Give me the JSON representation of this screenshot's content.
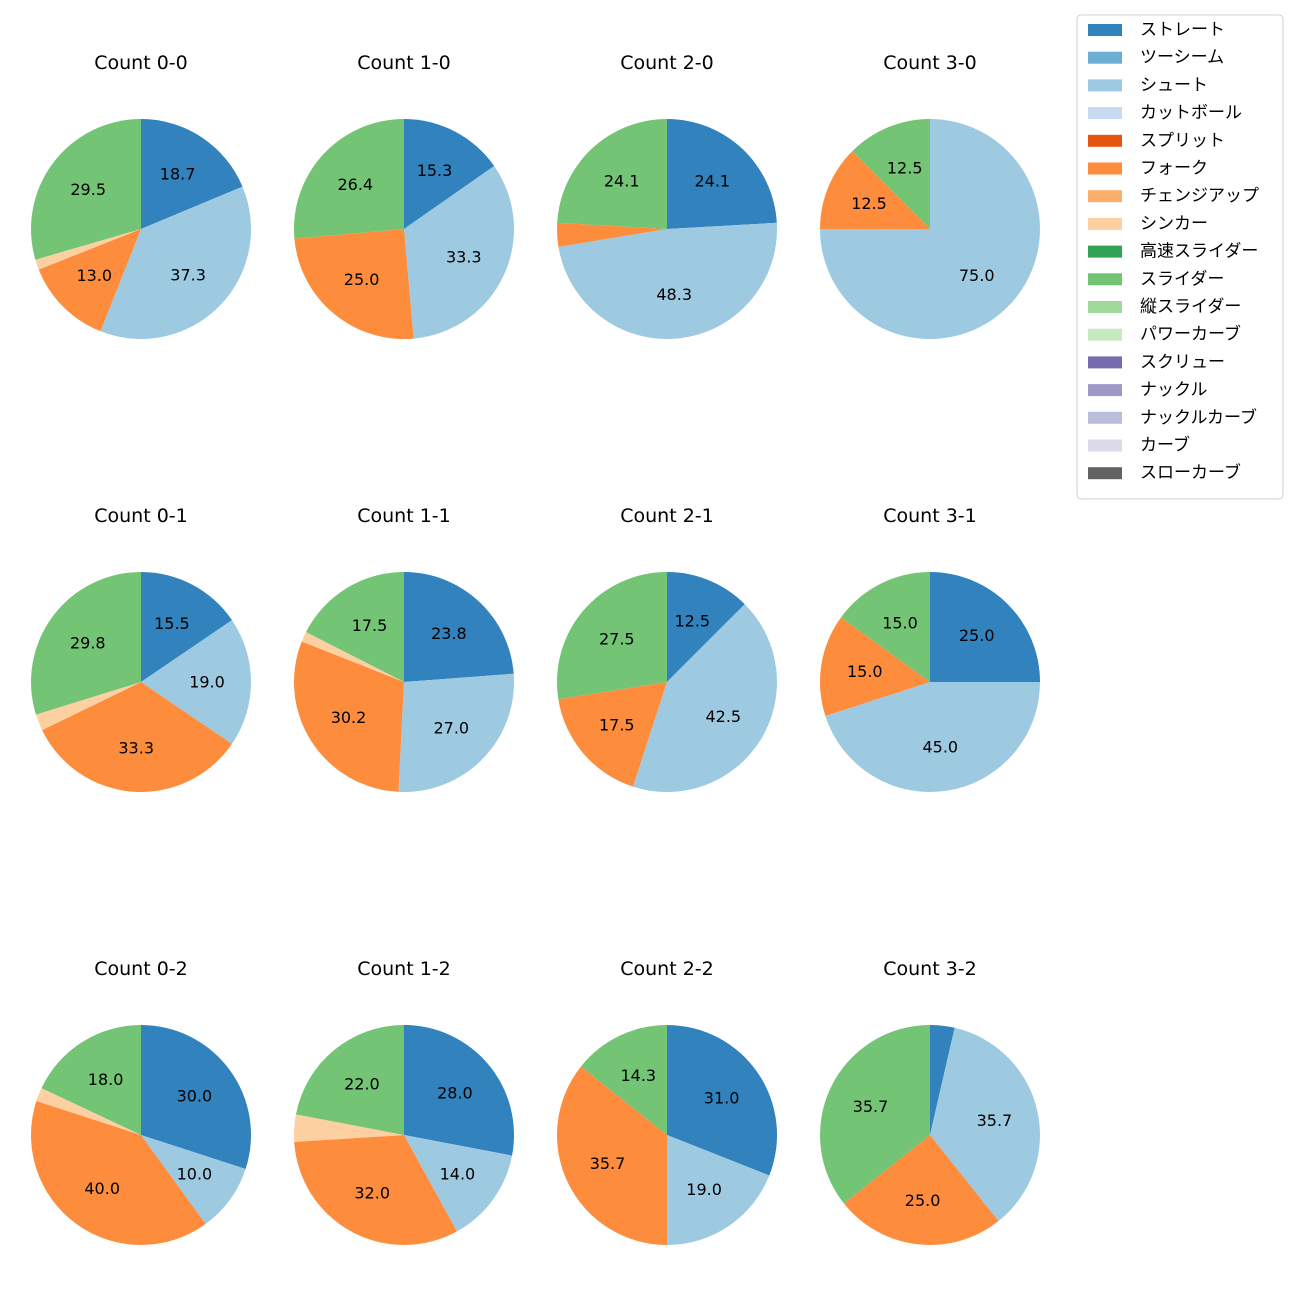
{
  "chart_data": {
    "type": "pie",
    "legend_position": "top-right",
    "pitch_types": [
      {
        "name": "ストレート",
        "color": "#3182bd"
      },
      {
        "name": "ツーシーム",
        "color": "#6baed6"
      },
      {
        "name": "シュート",
        "color": "#9ecae1"
      },
      {
        "name": "カットボール",
        "color": "#c6dbef"
      },
      {
        "name": "スプリット",
        "color": "#e6550d"
      },
      {
        "name": "フォーク",
        "color": "#fd8d3c"
      },
      {
        "name": "チェンジアップ",
        "color": "#fdae6b"
      },
      {
        "name": "シンカー",
        "color": "#fdd0a2"
      },
      {
        "name": "高速スライダー",
        "color": "#31a354"
      },
      {
        "name": "スライダー",
        "color": "#74c476"
      },
      {
        "name": "縦スライダー",
        "color": "#a1d99b"
      },
      {
        "name": "パワーカーブ",
        "color": "#c7e9c0"
      },
      {
        "name": "スクリュー",
        "color": "#756bb1"
      },
      {
        "name": "ナックル",
        "color": "#9e9ac8"
      },
      {
        "name": "ナックルカーブ",
        "color": "#bcbddc"
      },
      {
        "name": "カーブ",
        "color": "#dadaeb"
      },
      {
        "name": "スローカーブ",
        "color": "#636363"
      }
    ],
    "charts": [
      {
        "title": "Count 0-0",
        "slices": [
          {
            "pitch": "ストレート",
            "value": 18.7,
            "label": "18.7"
          },
          {
            "pitch": "シュート",
            "value": 37.3,
            "label": "37.3"
          },
          {
            "pitch": "フォーク",
            "value": 13.0,
            "label": "13.0"
          },
          {
            "pitch": "シンカー",
            "value": 1.5,
            "label": ""
          },
          {
            "pitch": "スライダー",
            "value": 29.5,
            "label": "29.5"
          }
        ]
      },
      {
        "title": "Count 1-0",
        "slices": [
          {
            "pitch": "ストレート",
            "value": 15.3,
            "label": "15.3"
          },
          {
            "pitch": "シュート",
            "value": 33.3,
            "label": "33.3"
          },
          {
            "pitch": "フォーク",
            "value": 25.0,
            "label": "25.0"
          },
          {
            "pitch": "スライダー",
            "value": 26.4,
            "label": "26.4"
          }
        ]
      },
      {
        "title": "Count 2-0",
        "slices": [
          {
            "pitch": "ストレート",
            "value": 24.1,
            "label": "24.1"
          },
          {
            "pitch": "シュート",
            "value": 48.3,
            "label": "48.3"
          },
          {
            "pitch": "フォーク",
            "value": 3.5,
            "label": ""
          },
          {
            "pitch": "スライダー",
            "value": 24.1,
            "label": "24.1"
          }
        ]
      },
      {
        "title": "Count 3-0",
        "slices": [
          {
            "pitch": "シュート",
            "value": 75.0,
            "label": "75.0"
          },
          {
            "pitch": "フォーク",
            "value": 12.5,
            "label": "12.5"
          },
          {
            "pitch": "スライダー",
            "value": 12.5,
            "label": "12.5"
          }
        ]
      },
      {
        "title": "Count 0-1",
        "slices": [
          {
            "pitch": "ストレート",
            "value": 15.5,
            "label": "15.5"
          },
          {
            "pitch": "シュート",
            "value": 19.0,
            "label": "19.0"
          },
          {
            "pitch": "フォーク",
            "value": 33.3,
            "label": "33.3"
          },
          {
            "pitch": "シンカー",
            "value": 2.4,
            "label": ""
          },
          {
            "pitch": "スライダー",
            "value": 29.8,
            "label": "29.8"
          }
        ]
      },
      {
        "title": "Count 1-1",
        "slices": [
          {
            "pitch": "ストレート",
            "value": 23.8,
            "label": "23.8"
          },
          {
            "pitch": "シュート",
            "value": 27.0,
            "label": "27.0"
          },
          {
            "pitch": "フォーク",
            "value": 30.2,
            "label": "30.2"
          },
          {
            "pitch": "シンカー",
            "value": 1.5,
            "label": ""
          },
          {
            "pitch": "スライダー",
            "value": 17.5,
            "label": "17.5"
          }
        ]
      },
      {
        "title": "Count 2-1",
        "slices": [
          {
            "pitch": "ストレート",
            "value": 12.5,
            "label": "12.5"
          },
          {
            "pitch": "シュート",
            "value": 42.5,
            "label": "42.5"
          },
          {
            "pitch": "フォーク",
            "value": 17.5,
            "label": "17.5"
          },
          {
            "pitch": "スライダー",
            "value": 27.5,
            "label": "27.5"
          }
        ]
      },
      {
        "title": "Count 3-1",
        "slices": [
          {
            "pitch": "ストレート",
            "value": 25.0,
            "label": "25.0"
          },
          {
            "pitch": "シュート",
            "value": 45.0,
            "label": "45.0"
          },
          {
            "pitch": "フォーク",
            "value": 15.0,
            "label": "15.0"
          },
          {
            "pitch": "スライダー",
            "value": 15.0,
            "label": "15.0"
          }
        ]
      },
      {
        "title": "Count 0-2",
        "slices": [
          {
            "pitch": "ストレート",
            "value": 30.0,
            "label": "30.0"
          },
          {
            "pitch": "シュート",
            "value": 10.0,
            "label": "10.0"
          },
          {
            "pitch": "フォーク",
            "value": 40.0,
            "label": "40.0"
          },
          {
            "pitch": "シンカー",
            "value": 2.0,
            "label": ""
          },
          {
            "pitch": "スライダー",
            "value": 18.0,
            "label": "18.0"
          }
        ]
      },
      {
        "title": "Count 1-2",
        "slices": [
          {
            "pitch": "ストレート",
            "value": 28.0,
            "label": "28.0"
          },
          {
            "pitch": "シュート",
            "value": 14.0,
            "label": "14.0"
          },
          {
            "pitch": "フォーク",
            "value": 32.0,
            "label": "32.0"
          },
          {
            "pitch": "シンカー",
            "value": 4.0,
            "label": ""
          },
          {
            "pitch": "スライダー",
            "value": 22.0,
            "label": "22.0"
          }
        ]
      },
      {
        "title": "Count 2-2",
        "slices": [
          {
            "pitch": "ストレート",
            "value": 31.0,
            "label": "31.0"
          },
          {
            "pitch": "シュート",
            "value": 19.0,
            "label": "19.0"
          },
          {
            "pitch": "フォーク",
            "value": 35.7,
            "label": "35.7"
          },
          {
            "pitch": "スライダー",
            "value": 14.3,
            "label": "14.3"
          }
        ]
      },
      {
        "title": "Count 3-2",
        "slices": [
          {
            "pitch": "ストレート",
            "value": 3.6,
            "label": ""
          },
          {
            "pitch": "シュート",
            "value": 35.7,
            "label": "35.7"
          },
          {
            "pitch": "フォーク",
            "value": 25.0,
            "label": "25.0"
          },
          {
            "pitch": "スライダー",
            "value": 35.7,
            "label": "35.7"
          }
        ]
      }
    ]
  }
}
